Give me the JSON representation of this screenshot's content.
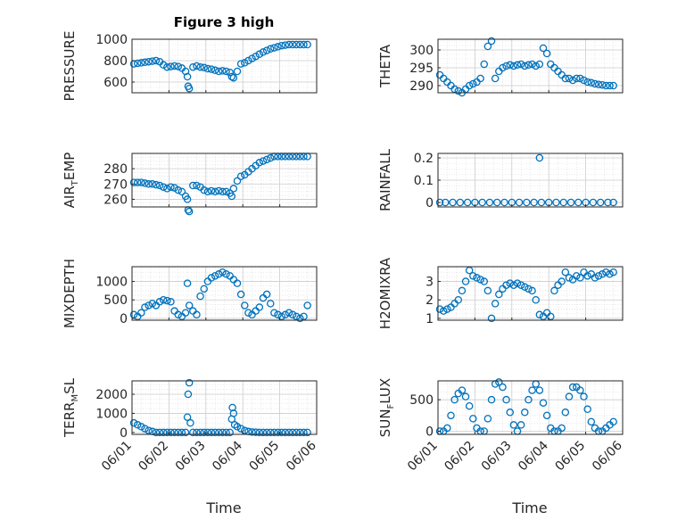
{
  "figure": {
    "title": "Figure 3 high",
    "marker_color": "#0072BD",
    "xlabel": "Time",
    "xticks": [
      "06/01",
      "06/02",
      "06/03",
      "06/04",
      "06/05",
      "06/06"
    ]
  },
  "chart_data": [
    {
      "type": "scatter",
      "panel": "pressure",
      "ylabel": "PRESSURE",
      "ylim": [
        500,
        1000
      ],
      "yticks": [
        "600",
        "800",
        "1000"
      ],
      "xlim": [
        0,
        5
      ],
      "grid": true,
      "x": [
        0.05,
        0.15,
        0.25,
        0.35,
        0.45,
        0.55,
        0.65,
        0.75,
        0.85,
        0.95,
        1.05,
        1.15,
        1.25,
        1.35,
        1.45,
        1.5,
        1.52,
        1.55,
        1.65,
        1.75,
        1.85,
        1.95,
        2.05,
        2.15,
        2.25,
        2.35,
        2.45,
        2.55,
        2.65,
        2.7,
        2.75,
        2.85,
        2.95,
        3.05,
        3.15,
        3.25,
        3.35,
        3.45,
        3.55,
        3.65,
        3.75,
        3.85,
        3.95,
        4.05,
        4.15,
        4.25,
        4.35,
        4.45,
        4.55,
        4.65,
        4.75
      ],
      "y": [
        770,
        775,
        780,
        785,
        790,
        795,
        800,
        790,
        760,
        740,
        745,
        750,
        745,
        730,
        700,
        650,
        560,
        540,
        740,
        750,
        740,
        735,
        725,
        720,
        710,
        700,
        705,
        700,
        690,
        650,
        640,
        700,
        770,
        780,
        800,
        820,
        840,
        860,
        880,
        895,
        910,
        920,
        930,
        940,
        945,
        950,
        950,
        950,
        950,
        950,
        950
      ]
    },
    {
      "type": "scatter",
      "panel": "theta",
      "ylabel": "THETA",
      "ylim": [
        288,
        303
      ],
      "yticks": [
        "290",
        "295",
        "300"
      ],
      "xlim": [
        0,
        5
      ],
      "grid": true,
      "x": [
        0.05,
        0.15,
        0.25,
        0.35,
        0.45,
        0.55,
        0.65,
        0.75,
        0.85,
        0.95,
        1.05,
        1.15,
        1.25,
        1.35,
        1.45,
        1.55,
        1.65,
        1.75,
        1.85,
        1.95,
        2.05,
        2.15,
        2.25,
        2.35,
        2.45,
        2.55,
        2.65,
        2.75,
        2.85,
        2.95,
        3.05,
        3.15,
        3.25,
        3.35,
        3.45,
        3.55,
        3.65,
        3.75,
        3.85,
        3.95,
        4.05,
        4.15,
        4.25,
        4.35,
        4.45,
        4.55,
        4.65,
        4.75
      ],
      "y": [
        293,
        292,
        291,
        290,
        289,
        288.5,
        288,
        289,
        290,
        290.5,
        291,
        292,
        296,
        301,
        302.5,
        292,
        294,
        295,
        295.5,
        295.8,
        295.5,
        295.8,
        296,
        295.5,
        295.8,
        296,
        295.5,
        296,
        300.5,
        299,
        296,
        295,
        294,
        293,
        292,
        292,
        291.5,
        292,
        292,
        291.5,
        291,
        290.8,
        290.5,
        290.3,
        290.2,
        290,
        290,
        290
      ]
    },
    {
      "type": "scatter",
      "panel": "air_temp",
      "ylabel": "AIR_TEMP",
      "ylim": [
        255,
        290
      ],
      "yticks": [
        "260",
        "270",
        "280"
      ],
      "xlim": [
        0,
        5
      ],
      "grid": true,
      "x": [
        0.05,
        0.15,
        0.25,
        0.35,
        0.45,
        0.55,
        0.65,
        0.75,
        0.85,
        0.95,
        1.05,
        1.15,
        1.25,
        1.35,
        1.45,
        1.5,
        1.52,
        1.55,
        1.65,
        1.75,
        1.85,
        1.95,
        2.05,
        2.15,
        2.25,
        2.35,
        2.45,
        2.55,
        2.65,
        2.7,
        2.75,
        2.85,
        2.95,
        3.05,
        3.15,
        3.25,
        3.35,
        3.45,
        3.55,
        3.65,
        3.75,
        3.85,
        3.95,
        4.05,
        4.15,
        4.25,
        4.35,
        4.45,
        4.55,
        4.65,
        4.75
      ],
      "y": [
        271,
        271,
        271,
        270.5,
        270,
        270,
        269.5,
        269,
        268,
        267,
        268,
        267.5,
        266,
        265,
        262,
        260,
        253,
        252,
        269,
        269,
        268,
        266,
        265,
        265.5,
        265,
        265.5,
        265,
        265,
        264,
        262,
        267,
        272,
        275,
        276,
        278,
        280,
        282,
        284,
        285,
        286,
        287,
        288,
        288,
        288,
        288,
        288,
        288,
        288,
        288,
        288,
        288
      ]
    },
    {
      "type": "scatter",
      "panel": "rainfall",
      "ylabel": "RAINFALL",
      "ylim": [
        -0.02,
        0.22
      ],
      "yticks": [
        "0",
        "0.1",
        "0.2"
      ],
      "xlim": [
        0,
        5
      ],
      "grid": true,
      "x": [
        0.05,
        0.2,
        0.4,
        0.6,
        0.8,
        1.0,
        1.2,
        1.4,
        1.6,
        1.8,
        2.0,
        2.2,
        2.4,
        2.6,
        2.75,
        2.8,
        3.0,
        3.2,
        3.4,
        3.6,
        3.8,
        4.0,
        4.2,
        4.4,
        4.6,
        4.75
      ],
      "y": [
        0,
        0,
        0,
        0,
        0,
        0,
        0,
        0,
        0,
        0,
        0,
        0,
        0,
        0,
        0.2,
        0,
        0,
        0,
        0,
        0,
        0,
        0,
        0,
        0,
        0,
        0
      ]
    },
    {
      "type": "scatter",
      "panel": "mixdepth",
      "ylabel": "MIXDEPTH",
      "ylim": [
        -50,
        1400
      ],
      "yticks": [
        "0",
        "500",
        "1000"
      ],
      "xlim": [
        0,
        5
      ],
      "grid": true,
      "x": [
        0.05,
        0.15,
        0.25,
        0.35,
        0.45,
        0.55,
        0.65,
        0.75,
        0.85,
        0.95,
        1.05,
        1.15,
        1.25,
        1.35,
        1.45,
        1.5,
        1.55,
        1.65,
        1.75,
        1.85,
        1.95,
        2.05,
        2.15,
        2.25,
        2.35,
        2.45,
        2.55,
        2.65,
        2.75,
        2.85,
        2.95,
        3.05,
        3.15,
        3.25,
        3.35,
        3.45,
        3.55,
        3.65,
        3.75,
        3.85,
        3.95,
        4.05,
        4.15,
        4.25,
        4.35,
        4.45,
        4.55,
        4.65,
        4.75
      ],
      "y": [
        100,
        50,
        150,
        300,
        350,
        400,
        350,
        450,
        500,
        480,
        450,
        200,
        100,
        50,
        150,
        950,
        350,
        200,
        100,
        600,
        800,
        1000,
        1100,
        1150,
        1200,
        1250,
        1200,
        1150,
        1050,
        950,
        650,
        350,
        150,
        100,
        200,
        300,
        550,
        650,
        400,
        150,
        100,
        50,
        100,
        150,
        100,
        50,
        0,
        50,
        350
      ]
    },
    {
      "type": "scatter",
      "panel": "h2omixra",
      "ylabel": "H2OMIXRA",
      "ylim": [
        0.9,
        3.8
      ],
      "yticks": [
        "1",
        "2",
        "3"
      ],
      "xlim": [
        0,
        5
      ],
      "grid": true,
      "x": [
        0.05,
        0.15,
        0.25,
        0.35,
        0.45,
        0.55,
        0.65,
        0.75,
        0.85,
        0.95,
        1.05,
        1.15,
        1.25,
        1.35,
        1.45,
        1.55,
        1.65,
        1.75,
        1.85,
        1.95,
        2.05,
        2.15,
        2.25,
        2.35,
        2.45,
        2.55,
        2.65,
        2.75,
        2.85,
        2.95,
        3.05,
        3.15,
        3.25,
        3.35,
        3.45,
        3.55,
        3.65,
        3.75,
        3.85,
        3.95,
        4.05,
        4.15,
        4.25,
        4.35,
        4.45,
        4.55,
        4.65,
        4.75
      ],
      "y": [
        1.5,
        1.4,
        1.5,
        1.6,
        1.8,
        2.0,
        2.5,
        3.0,
        3.6,
        3.3,
        3.2,
        3.1,
        3.0,
        2.5,
        1.0,
        1.8,
        2.3,
        2.6,
        2.8,
        2.9,
        2.8,
        2.9,
        2.8,
        2.7,
        2.6,
        2.5,
        2.0,
        1.2,
        1.1,
        1.3,
        1.1,
        2.5,
        2.8,
        3.0,
        3.5,
        3.2,
        3.1,
        3.3,
        3.2,
        3.5,
        3.3,
        3.4,
        3.2,
        3.3,
        3.4,
        3.5,
        3.4,
        3.5
      ]
    },
    {
      "type": "scatter",
      "panel": "terr_msl",
      "ylabel": "TERR_MSL",
      "ylim": [
        -100,
        2700
      ],
      "yticks": [
        "0",
        "1000",
        "2000"
      ],
      "xlim": [
        0,
        5
      ],
      "grid": true,
      "x": [
        0.05,
        0.15,
        0.25,
        0.35,
        0.45,
        0.55,
        0.65,
        0.75,
        0.85,
        0.95,
        1.05,
        1.15,
        1.25,
        1.35,
        1.45,
        1.5,
        1.52,
        1.55,
        1.58,
        1.65,
        1.75,
        1.85,
        1.95,
        2.05,
        2.15,
        2.25,
        2.35,
        2.45,
        2.55,
        2.65,
        2.7,
        2.72,
        2.75,
        2.78,
        2.85,
        2.95,
        3.05,
        3.15,
        3.25,
        3.35,
        3.45,
        3.55,
        3.65,
        3.75,
        3.85,
        3.95,
        4.05,
        4.15,
        4.25,
        4.35,
        4.45,
        4.55,
        4.65,
        4.75
      ],
      "y": [
        500,
        400,
        300,
        200,
        100,
        50,
        0,
        0,
        0,
        0,
        0,
        0,
        0,
        0,
        0,
        800,
        2000,
        2600,
        500,
        0,
        0,
        0,
        0,
        0,
        0,
        0,
        0,
        0,
        0,
        0,
        700,
        1300,
        1000,
        400,
        300,
        200,
        100,
        50,
        20,
        10,
        0,
        0,
        0,
        0,
        0,
        0,
        0,
        0,
        0,
        0,
        0,
        0,
        0,
        0
      ]
    },
    {
      "type": "scatter",
      "panel": "sun_flux",
      "ylabel": "SUN_FLUX",
      "ylim": [
        -50,
        800
      ],
      "yticks": [
        "0",
        "500"
      ],
      "xlim": [
        0,
        5
      ],
      "grid": true,
      "x": [
        0.05,
        0.15,
        0.25,
        0.35,
        0.45,
        0.55,
        0.65,
        0.75,
        0.85,
        0.95,
        1.05,
        1.15,
        1.25,
        1.35,
        1.45,
        1.55,
        1.65,
        1.75,
        1.85,
        1.95,
        2.05,
        2.15,
        2.25,
        2.35,
        2.45,
        2.55,
        2.65,
        2.75,
        2.85,
        2.95,
        3.05,
        3.15,
        3.25,
        3.35,
        3.45,
        3.55,
        3.65,
        3.75,
        3.85,
        3.95,
        4.05,
        4.15,
        4.25,
        4.35,
        4.45,
        4.55,
        4.65,
        4.75
      ],
      "y": [
        0,
        0,
        50,
        250,
        500,
        600,
        650,
        550,
        400,
        200,
        50,
        0,
        0,
        200,
        500,
        750,
        780,
        700,
        500,
        300,
        100,
        0,
        100,
        300,
        500,
        650,
        750,
        650,
        450,
        250,
        50,
        0,
        0,
        50,
        300,
        550,
        700,
        700,
        650,
        550,
        350,
        150,
        50,
        0,
        0,
        50,
        100,
        150
      ]
    }
  ]
}
